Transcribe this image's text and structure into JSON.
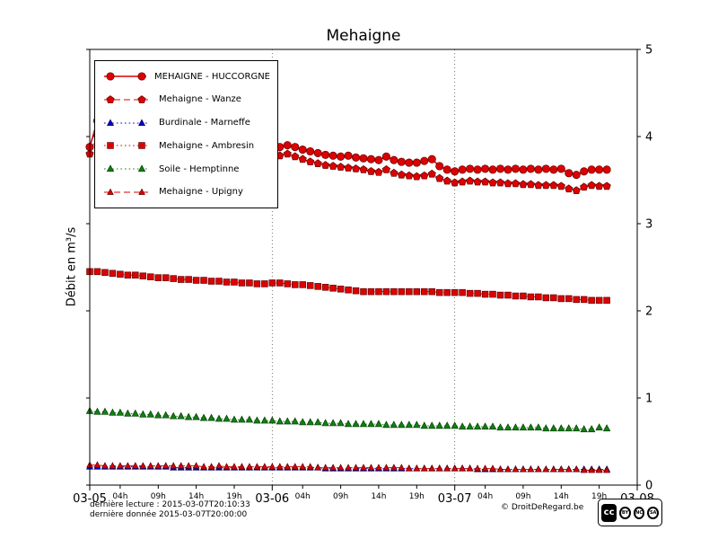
{
  "title": "Mehaigne",
  "ylabel": "Débit en m³/s",
  "footer": {
    "line1": "dernière lecture : 2015-03-07T20:10:33",
    "line2": "dernière donnée  2015-03-07T20:00:00",
    "copyright": "© DroitDeRegard.be",
    "license": {
      "cc": "cc",
      "by": "BY",
      "nc": "NC",
      "sa": "SA"
    }
  },
  "chart_data": {
    "type": "line",
    "title": "Mehaigne",
    "ylabel": "Débit en m³/s",
    "ylim": [
      0,
      5
    ],
    "xlim_hours": [
      0,
      72
    ],
    "x_hours_step": 1,
    "grid": "vertical-dotted-at-days",
    "legend_position": "upper-left",
    "y_ticks": [
      0,
      1,
      2,
      3,
      4,
      5
    ],
    "x_major_ticks": [
      {
        "hour": 0,
        "label": "03-05"
      },
      {
        "hour": 24,
        "label": "03-06"
      },
      {
        "hour": 48,
        "label": "03-07"
      },
      {
        "hour": 72,
        "label": "03-08"
      }
    ],
    "x_minor_ticks": [
      {
        "hour": 4,
        "label": "04h"
      },
      {
        "hour": 9,
        "label": "09h"
      },
      {
        "hour": 14,
        "label": "14h"
      },
      {
        "hour": 19,
        "label": "19h"
      },
      {
        "hour": 28,
        "label": "04h"
      },
      {
        "hour": 33,
        "label": "09h"
      },
      {
        "hour": 38,
        "label": "14h"
      },
      {
        "hour": 43,
        "label": "19h"
      },
      {
        "hour": 52,
        "label": "04h"
      },
      {
        "hour": 57,
        "label": "09h"
      },
      {
        "hour": 62,
        "label": "14h"
      },
      {
        "hour": 67,
        "label": "19h"
      }
    ],
    "series": [
      {
        "name": "MEHAIGNE - HUCCORGNE",
        "color": "#dd0000",
        "edge": "#5f0000",
        "line": "solid",
        "marker": "circle",
        "msize": 4.2,
        "values": [
          3.88,
          4.18,
          4.02,
          3.93,
          3.9,
          3.89,
          3.88,
          3.87,
          3.86,
          3.85,
          3.84,
          3.84,
          3.83,
          3.82,
          3.82,
          3.81,
          3.8,
          3.8,
          3.79,
          3.79,
          3.78,
          3.78,
          3.77,
          3.77,
          3.8,
          3.88,
          3.9,
          3.88,
          3.85,
          3.83,
          3.81,
          3.79,
          3.78,
          3.77,
          3.78,
          3.76,
          3.75,
          3.74,
          3.73,
          3.77,
          3.73,
          3.71,
          3.7,
          3.7,
          3.72,
          3.74,
          3.66,
          3.62,
          3.6,
          3.62,
          3.63,
          3.62,
          3.63,
          3.62,
          3.63,
          3.62,
          3.63,
          3.62,
          3.63,
          3.62,
          3.63,
          3.62,
          3.63,
          3.58,
          3.56,
          3.6,
          3.62,
          3.62,
          3.62
        ]
      },
      {
        "name": "Mehaigne - Wanze",
        "color": "#dd0000",
        "edge": "#5f0000",
        "line": "dashed",
        "marker": "pentagon",
        "msize": 4.4,
        "values": [
          3.8,
          4.0,
          3.9,
          3.85,
          3.82,
          3.8,
          3.79,
          3.78,
          3.77,
          3.76,
          3.75,
          3.74,
          3.74,
          3.73,
          3.72,
          3.72,
          3.71,
          3.71,
          3.7,
          3.7,
          3.69,
          3.69,
          3.68,
          3.68,
          3.7,
          3.78,
          3.8,
          3.77,
          3.74,
          3.71,
          3.69,
          3.67,
          3.66,
          3.65,
          3.64,
          3.63,
          3.62,
          3.6,
          3.59,
          3.62,
          3.58,
          3.56,
          3.55,
          3.54,
          3.55,
          3.57,
          3.52,
          3.49,
          3.47,
          3.48,
          3.49,
          3.48,
          3.48,
          3.47,
          3.47,
          3.46,
          3.46,
          3.45,
          3.45,
          3.44,
          3.44,
          3.44,
          3.43,
          3.4,
          3.38,
          3.42,
          3.44,
          3.43,
          3.43
        ]
      },
      {
        "name": "Burdinale - Marneffe",
        "color": "#0000cc",
        "edge": "#00005f",
        "line": "dotted",
        "marker": "triangle",
        "msize": 3.8,
        "values": [
          0.21,
          0.21,
          0.21,
          0.21,
          0.21,
          0.21,
          0.21,
          0.21,
          0.21,
          0.21,
          0.21,
          0.2,
          0.2,
          0.2,
          0.2,
          0.2,
          0.2,
          0.2,
          0.2,
          0.2,
          0.2,
          0.2,
          0.2,
          0.2,
          0.2,
          0.2,
          0.2,
          0.2,
          0.2,
          0.2,
          0.2,
          0.19,
          0.19,
          0.19,
          0.19,
          0.19,
          0.19,
          0.19,
          0.19,
          0.19,
          0.19,
          0.19,
          0.19,
          0.19,
          0.19,
          0.19,
          0.19,
          0.19,
          0.19,
          0.19,
          0.19,
          0.18,
          0.18,
          0.18,
          0.18,
          0.18,
          0.18,
          0.18,
          0.18,
          0.18,
          0.18,
          0.18,
          0.18,
          0.18,
          0.18,
          0.18,
          0.18,
          0.18,
          0.18
        ]
      },
      {
        "name": "Mehaigne - Ambresin",
        "color": "#dd0000",
        "edge": "#5f0000",
        "line": "dotted",
        "marker": "square",
        "msize": 3.4,
        "values": [
          2.45,
          2.45,
          2.44,
          2.43,
          2.42,
          2.41,
          2.41,
          2.4,
          2.39,
          2.38,
          2.38,
          2.37,
          2.36,
          2.36,
          2.35,
          2.35,
          2.34,
          2.34,
          2.33,
          2.33,
          2.32,
          2.32,
          2.31,
          2.31,
          2.32,
          2.32,
          2.31,
          2.3,
          2.3,
          2.29,
          2.28,
          2.27,
          2.26,
          2.25,
          2.24,
          2.23,
          2.22,
          2.22,
          2.22,
          2.22,
          2.22,
          2.22,
          2.22,
          2.22,
          2.22,
          2.22,
          2.21,
          2.21,
          2.21,
          2.21,
          2.2,
          2.2,
          2.19,
          2.19,
          2.18,
          2.18,
          2.17,
          2.17,
          2.16,
          2.16,
          2.15,
          2.15,
          2.14,
          2.14,
          2.13,
          2.13,
          2.12,
          2.12,
          2.12
        ]
      },
      {
        "name": "Soile - Hemptinne",
        "color": "#128012",
        "edge": "#003b00",
        "line": "dotted",
        "marker": "triangle",
        "msize": 4.0,
        "values": [
          0.85,
          0.84,
          0.84,
          0.83,
          0.83,
          0.82,
          0.82,
          0.81,
          0.81,
          0.8,
          0.8,
          0.79,
          0.79,
          0.78,
          0.78,
          0.77,
          0.77,
          0.76,
          0.76,
          0.75,
          0.75,
          0.75,
          0.74,
          0.74,
          0.74,
          0.73,
          0.73,
          0.73,
          0.72,
          0.72,
          0.72,
          0.71,
          0.71,
          0.71,
          0.7,
          0.7,
          0.7,
          0.7,
          0.7,
          0.69,
          0.69,
          0.69,
          0.69,
          0.69,
          0.68,
          0.68,
          0.68,
          0.68,
          0.68,
          0.67,
          0.67,
          0.67,
          0.67,
          0.67,
          0.66,
          0.66,
          0.66,
          0.66,
          0.66,
          0.66,
          0.65,
          0.65,
          0.65,
          0.65,
          0.65,
          0.64,
          0.64,
          0.66,
          0.65
        ]
      },
      {
        "name": "Mehaigne - Upigny",
        "color": "#dd0000",
        "edge": "#5f0000",
        "line": "dashed",
        "marker": "triangle",
        "msize": 3.6,
        "values": [
          0.23,
          0.23,
          0.22,
          0.22,
          0.22,
          0.22,
          0.22,
          0.22,
          0.22,
          0.22,
          0.22,
          0.22,
          0.22,
          0.22,
          0.22,
          0.21,
          0.21,
          0.22,
          0.21,
          0.21,
          0.21,
          0.21,
          0.21,
          0.21,
          0.21,
          0.21,
          0.21,
          0.21,
          0.21,
          0.21,
          0.2,
          0.2,
          0.2,
          0.2,
          0.2,
          0.2,
          0.2,
          0.2,
          0.2,
          0.2,
          0.2,
          0.2,
          0.19,
          0.19,
          0.19,
          0.19,
          0.19,
          0.19,
          0.19,
          0.19,
          0.19,
          0.19,
          0.19,
          0.19,
          0.18,
          0.18,
          0.18,
          0.18,
          0.18,
          0.18,
          0.18,
          0.18,
          0.18,
          0.18,
          0.18,
          0.17,
          0.17,
          0.17,
          0.17
        ]
      }
    ]
  }
}
